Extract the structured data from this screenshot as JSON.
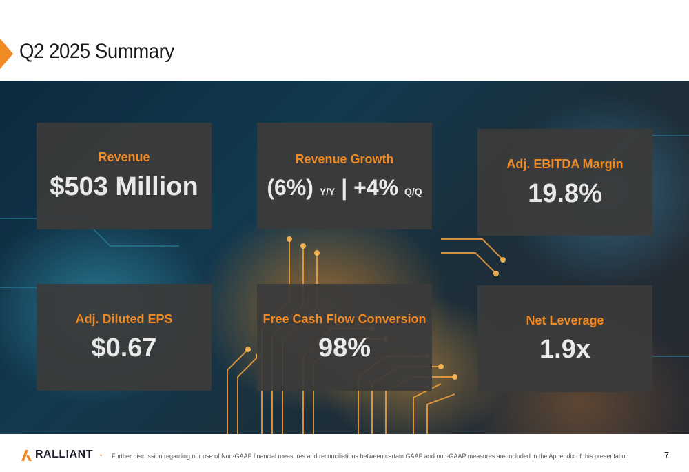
{
  "slide": {
    "title": "Q2 2025 Summary",
    "page_number": "7"
  },
  "cards": {
    "revenue": {
      "label": "Revenue",
      "value": "$503 Million"
    },
    "revenue_growth": {
      "label": "Revenue Growth",
      "part1": "(6%)",
      "part1_suffix": "Y/Y",
      "separator": "|",
      "part2": "+4%",
      "part2_suffix": "Q/Q"
    },
    "ebitda_margin": {
      "label": "Adj. EBITDA Margin",
      "value": "19.8%"
    },
    "diluted_eps": {
      "label": "Adj. Diluted EPS",
      "value": "$0.67"
    },
    "fcf_conversion": {
      "label": "Free Cash Flow Conversion",
      "value": "98%"
    },
    "net_leverage": {
      "label": "Net Leverage",
      "value": "1.9x"
    }
  },
  "footer": {
    "brand": "RALLIANT",
    "bullet": "•",
    "note": "Further discussion regarding our use of Non-GAAP financial measures and reconciliations between certain GAAP and non-GAAP measures are included in the Appendix of this presentation"
  },
  "colors": {
    "accent": "#f08a24",
    "card_bg": "#3a3a3a",
    "value_text": "#e9e9e9",
    "brand_text": "#1d1d2b"
  }
}
